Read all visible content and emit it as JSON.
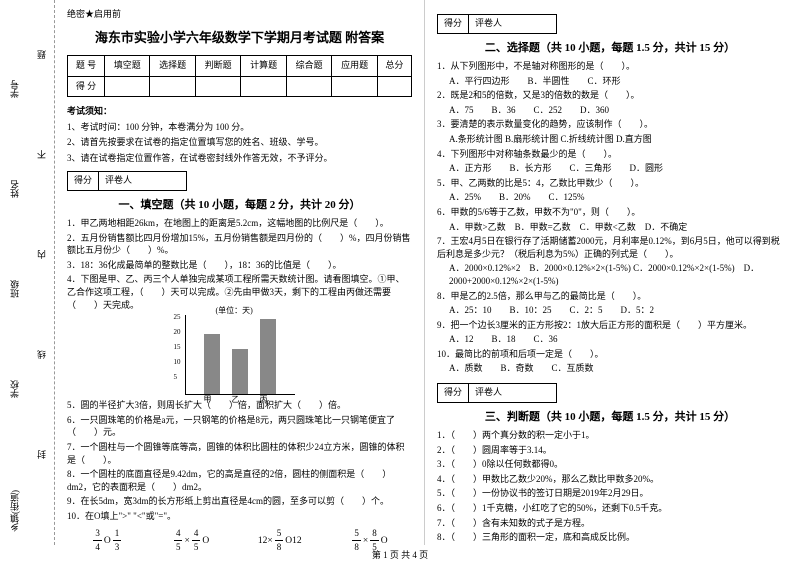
{
  "margin": {
    "labels": [
      "乡镇(街道)",
      "学校",
      "班级",
      "姓名",
      "学号"
    ],
    "marks": [
      "封",
      "线",
      "内",
      "不",
      "题"
    ]
  },
  "secret": "绝密★启用前",
  "title": "海东市实验小学六年级数学下学期月考试题 附答案",
  "score_table": {
    "headers": [
      "题 号",
      "填空题",
      "选择题",
      "判断题",
      "计算题",
      "综合题",
      "应用题",
      "总分"
    ],
    "row2": [
      "得 分",
      "",
      "",
      "",
      "",
      "",
      "",
      ""
    ]
  },
  "notice": {
    "heading": "考试须知：",
    "items": [
      "1、考试时间：100 分钟，本卷满分为 100 分。",
      "2、请首先按要求在试卷的指定位置填写您的姓名、班级、学号。",
      "3、请在试卷指定位置作答，在试卷密封线外作答无效，不予评分。"
    ]
  },
  "sec_head": {
    "c1": "得分",
    "c2": "评卷人"
  },
  "sec1": {
    "title": "一、填空题（共 10 小题，每题 2 分，共计 20 分）",
    "q1": "1．甲乙两地相距26km，在地图上的距离是5.2cm，这幅地图的比例尺是（　　）。",
    "q2": "2．五月份销售额比四月份增加15%，五月份销售额是四月份的（　　）%，四月份销售额比五月份少（　　）%。",
    "q3": "3．18：36化成最简单的整数比是（　　），18：36的比值是（　　）。",
    "q4": "4．下图是甲、乙、丙三个人单独完成某项工程所需天数统计图。请看图填空。①甲、乙合作这项工程，（　　）天可以完成。②先由甲做3天，剩下的工程由丙做还需要（　　）天完成。",
    "q5": "5．圆的半径扩大3倍，则周长扩大（　　）倍，面积扩大（　　）倍。",
    "q6": "6．一只圆珠笔的价格是a元，一只钢笔的价格是8元，两只圆珠笔比一只钢笔便宜了（　　）元。",
    "q7": "7．一个圆柱与一个圆锥等底等高，圆锥的体积比圆柱的体积少24立方米，圆锥的体积是（　　）。",
    "q8": "8．一个圆柱的底面直径是9.42dm，它的高是直径的2倍，圆柱的侧面积是（　　）dm2，它的表面积是（　　）dm2。",
    "q9": "9．在长5dm，宽3dm的长方形纸上剪出直径是4cm的圆，至多可以剪（　　）个。",
    "q10": "10．在O填上\">\" \"<\"或\"=\"。"
  },
  "chart": {
    "title": "(单位：天)",
    "ymax": 25,
    "yticks": [
      5,
      10,
      15,
      20,
      25
    ],
    "bars": [
      {
        "label": "甲",
        "value": 20,
        "color": "#7a7a7a",
        "x": 18
      },
      {
        "label": "乙",
        "value": 15,
        "color": "#7a7a7a",
        "x": 46
      },
      {
        "label": "丙",
        "value": 25,
        "color": "#7a7a7a",
        "x": 74
      }
    ]
  },
  "comp": [
    {
      "f1n": "3",
      "f1d": "4",
      "op": "O",
      "f2n": "1",
      "f2d": "3"
    },
    {
      "f1n": "4",
      "f1d": "5",
      "op": "O",
      "f2n": "4",
      "f2d": "5",
      "pre": "×"
    },
    {
      "t1": "12×",
      "f1n": "5",
      "f1d": "8",
      "op": "O",
      "t2": "12"
    },
    {
      "f1n": "5",
      "f1d": "8",
      "op": "O",
      "f2n": "8",
      "f2d": "5",
      "pre": "×"
    }
  ],
  "sec2": {
    "title": "二、选择题（共 10 小题，每题 1.5 分，共计 15 分）",
    "items": [
      {
        "q": "1．从下列图形中，不是轴对称图形的是（　　）。",
        "o": "A．平行四边形　　B．半圆性　　C．环形"
      },
      {
        "q": "2．既是2和5的倍数，又是3的倍数的数是（　　）。",
        "o": "A．75　　B．36　　C．252　　D．360"
      },
      {
        "q": "3．要清楚的表示数量变化的趋势，应该制作（　　）。",
        "o": "A.条形统计图  B.扇形统计图  C.折线统计图  D.直方图"
      },
      {
        "q": "4．下列图形中对称轴条数最少的是（　　）。",
        "o": "A．正方形　　B．长方形　　C．三角形　　D．圆形"
      },
      {
        "q": "5．甲、乙两数的比是5：4，乙数比甲数少（　　）。",
        "o": "A．25%　　B．20%　　C．125%"
      },
      {
        "q": "6．甲数的5/6等于乙数，甲数不为\"0\"，则（　　）。",
        "o": "A．甲数>乙数　B．甲数=乙数　C．甲数<乙数　D．不确定"
      },
      {
        "q": "7．王宏4月5日在银行存了活期储蓄2000元，月利率是0.12%，到6月5日，他可以得到税后利息是多少元？（税后利息为5%）正确的列式是（　　）。",
        "o": "A．2000×0.12%×2　B．2000×0.12%×2×(1-5%)\nC．2000×0.12%×2×(1-5%)　D．2000+2000×0.12%×2×(1-5%)"
      },
      {
        "q": "8．甲是乙的2.5倍，那么甲与乙的最简比是（　　）。",
        "o": "A．25：10　　B．10：25　　C．2：5　　D．5：2"
      },
      {
        "q": "9．把一个边长3厘米的正方形按2：1放大后正方形的面积是（　　）平方厘米。",
        "o": "A．12　　B．18　　C．36"
      },
      {
        "q": "10．最简比的前项和后项一定是（　　）。",
        "o": "A．质数　　B．奇数　　C．互质数"
      }
    ]
  },
  "sec3": {
    "title": "三、判断题（共 10 小题，每题 1.5 分，共计 15 分）",
    "items": [
      "1．（　　）两个真分数的积一定小于1。",
      "2．（　　）圆周率等于3.14。",
      "3．（　　）0除以任何数都得0。",
      "4．（　　）甲数比乙数少20%，那么乙数比甲数多20%。",
      "5．（　　）一份协议书的签订日期是2019年2月29日。",
      "6．（　　）1千克糖，小红吃了它的50%，还剩下0.5千克。",
      "7．（　　）含有未知数的式子是方程。",
      "8．（　　）三角形的面积一定，底和高成反比例。"
    ]
  },
  "footer": "第 1 页 共 4 页"
}
